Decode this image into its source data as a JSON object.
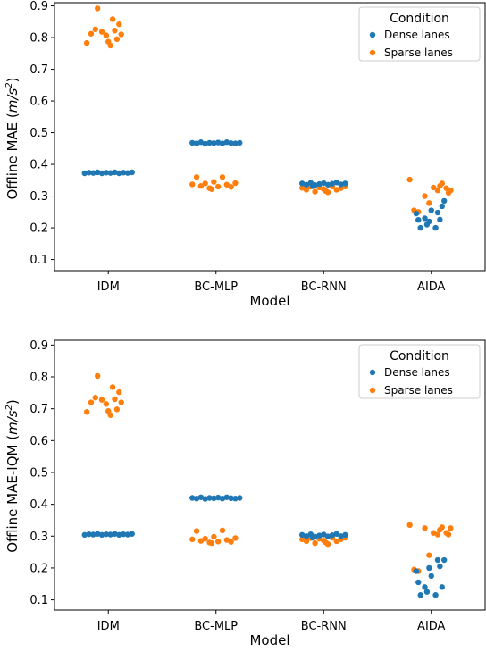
{
  "chart_data": [
    {
      "type": "scatter",
      "subtype": "strip",
      "title": "",
      "xlabel": "Model",
      "ylabel": "Offline MAE (m/s²)",
      "ylabel_parts": {
        "main": "Offline MAE (",
        "unit_base": "m/s",
        "unit_sup": "2",
        "close": ")"
      },
      "categories": [
        "IDM",
        "BC-MLP",
        "BC-RNN",
        "AIDA"
      ],
      "ylim": [
        0.065,
        0.91
      ],
      "yticks": [
        "0.1",
        "0.2",
        "0.3",
        "0.4",
        "0.5",
        "0.6",
        "0.7",
        "0.8",
        "0.9"
      ],
      "grid": false,
      "legend": {
        "title": "Condition",
        "position": "top-right"
      },
      "series": [
        {
          "name": "Dense lanes",
          "color": "#1f77b4",
          "points": [
            [
              [
                -0.22,
                0.372
              ],
              [
                -0.18,
                0.374
              ],
              [
                -0.14,
                0.373
              ],
              [
                -0.1,
                0.375
              ],
              [
                -0.06,
                0.372
              ],
              [
                -0.02,
                0.374
              ],
              [
                0.02,
                0.373
              ],
              [
                0.06,
                0.375
              ],
              [
                0.1,
                0.372
              ],
              [
                0.14,
                0.374
              ],
              [
                0.18,
                0.373
              ],
              [
                0.22,
                0.375
              ]
            ],
            [
              [
                -0.22,
                0.468
              ],
              [
                -0.18,
                0.466
              ],
              [
                -0.14,
                0.47
              ],
              [
                -0.1,
                0.465
              ],
              [
                -0.06,
                0.468
              ],
              [
                -0.02,
                0.467
              ],
              [
                0.02,
                0.469
              ],
              [
                0.06,
                0.466
              ],
              [
                0.1,
                0.47
              ],
              [
                0.14,
                0.467
              ],
              [
                0.18,
                0.466
              ],
              [
                0.22,
                0.468
              ]
            ],
            [
              [
                -0.2,
                0.34
              ],
              [
                -0.16,
                0.336
              ],
              [
                -0.12,
                0.342
              ],
              [
                -0.08,
                0.335
              ],
              [
                -0.04,
                0.338
              ],
              [
                0.0,
                0.341
              ],
              [
                0.04,
                0.336
              ],
              [
                0.08,
                0.339
              ],
              [
                0.12,
                0.343
              ],
              [
                0.16,
                0.337
              ],
              [
                0.2,
                0.34
              ],
              [
                -0.1,
                0.331
              ]
            ],
            [
              [
                -0.14,
                0.245
              ],
              [
                -0.12,
                0.225
              ],
              [
                -0.1,
                0.2
              ],
              [
                -0.06,
                0.23
              ],
              [
                -0.02,
                0.22
              ],
              [
                0.0,
                0.255
              ],
              [
                0.04,
                0.2
              ],
              [
                0.06,
                0.248
              ],
              [
                0.1,
                0.268
              ],
              [
                0.12,
                0.285
              ],
              [
                0.08,
                0.226
              ],
              [
                -0.04,
                0.21
              ]
            ]
          ]
        },
        {
          "name": "Sparse lanes",
          "color": "#ff7f0e",
          "points": [
            [
              [
                -0.2,
                0.783
              ],
              [
                -0.16,
                0.812
              ],
              [
                -0.12,
                0.826
              ],
              [
                -0.1,
                0.892
              ],
              [
                -0.06,
                0.818
              ],
              [
                -0.02,
                0.807
              ],
              [
                0.02,
                0.775
              ],
              [
                0.04,
                0.858
              ],
              [
                0.06,
                0.822
              ],
              [
                0.08,
                0.795
              ],
              [
                0.1,
                0.842
              ],
              [
                0.12,
                0.81
              ],
              [
                0.0,
                0.787
              ]
            ],
            [
              [
                -0.22,
                0.337
              ],
              [
                -0.18,
                0.36
              ],
              [
                -0.14,
                0.332
              ],
              [
                -0.1,
                0.34
              ],
              [
                -0.06,
                0.325
              ],
              [
                -0.02,
                0.345
              ],
              [
                0.02,
                0.33
              ],
              [
                0.06,
                0.36
              ],
              [
                0.1,
                0.336
              ],
              [
                0.14,
                0.329
              ],
              [
                0.18,
                0.341
              ],
              [
                -0.04,
                0.322
              ]
            ],
            [
              [
                -0.2,
                0.326
              ],
              [
                -0.16,
                0.32
              ],
              [
                -0.12,
                0.33
              ],
              [
                -0.08,
                0.314
              ],
              [
                -0.04,
                0.327
              ],
              [
                0.0,
                0.322
              ],
              [
                0.04,
                0.312
              ],
              [
                0.08,
                0.33
              ],
              [
                0.12,
                0.32
              ],
              [
                0.16,
                0.325
              ],
              [
                0.2,
                0.33
              ],
              [
                0.02,
                0.316
              ]
            ],
            [
              [
                -0.2,
                0.352
              ],
              [
                -0.16,
                0.255
              ],
              [
                -0.12,
                0.25
              ],
              [
                -0.06,
                0.3
              ],
              [
                -0.02,
                0.278
              ],
              [
                0.02,
                0.327
              ],
              [
                0.06,
                0.318
              ],
              [
                0.1,
                0.34
              ],
              [
                0.14,
                0.325
              ],
              [
                0.16,
                0.31
              ],
              [
                0.18,
                0.318
              ],
              [
                0.08,
                0.332
              ]
            ]
          ]
        }
      ]
    },
    {
      "type": "scatter",
      "subtype": "strip",
      "title": "",
      "xlabel": "Model",
      "ylabel": "Offline MAE-IQM (m/s²)",
      "ylabel_parts": {
        "main": "Offline MAE-IQM (",
        "unit_base": "m/s",
        "unit_sup": "2",
        "close": ")"
      },
      "categories": [
        "IDM",
        "BC-MLP",
        "BC-RNN",
        "AIDA"
      ],
      "ylim": [
        0.068,
        0.915
      ],
      "yticks": [
        "0.1",
        "0.2",
        "0.3",
        "0.4",
        "0.5",
        "0.6",
        "0.7",
        "0.8",
        "0.9"
      ],
      "grid": false,
      "legend": {
        "title": "Condition",
        "position": "top-right"
      },
      "series": [
        {
          "name": "Dense lanes",
          "color": "#1f77b4",
          "points": [
            [
              [
                -0.22,
                0.304
              ],
              [
                -0.18,
                0.306
              ],
              [
                -0.14,
                0.305
              ],
              [
                -0.1,
                0.307
              ],
              [
                -0.06,
                0.304
              ],
              [
                -0.02,
                0.306
              ],
              [
                0.02,
                0.305
              ],
              [
                0.06,
                0.307
              ],
              [
                0.1,
                0.304
              ],
              [
                0.14,
                0.306
              ],
              [
                0.18,
                0.305
              ],
              [
                0.22,
                0.307
              ]
            ],
            [
              [
                -0.22,
                0.42
              ],
              [
                -0.18,
                0.418
              ],
              [
                -0.14,
                0.422
              ],
              [
                -0.1,
                0.417
              ],
              [
                -0.06,
                0.42
              ],
              [
                -0.02,
                0.419
              ],
              [
                0.02,
                0.421
              ],
              [
                0.06,
                0.418
              ],
              [
                0.1,
                0.422
              ],
              [
                0.14,
                0.419
              ],
              [
                0.18,
                0.418
              ],
              [
                0.22,
                0.42
              ]
            ],
            [
              [
                -0.2,
                0.304
              ],
              [
                -0.16,
                0.3
              ],
              [
                -0.12,
                0.306
              ],
              [
                -0.08,
                0.298
              ],
              [
                -0.04,
                0.302
              ],
              [
                0.0,
                0.305
              ],
              [
                0.04,
                0.299
              ],
              [
                0.08,
                0.303
              ],
              [
                0.12,
                0.307
              ],
              [
                0.16,
                0.3
              ],
              [
                0.2,
                0.304
              ],
              [
                -0.1,
                0.295
              ]
            ],
            [
              [
                -0.14,
                0.19
              ],
              [
                -0.12,
                0.155
              ],
              [
                -0.1,
                0.115
              ],
              [
                -0.06,
                0.14
              ],
              [
                -0.02,
                0.2
              ],
              [
                0.0,
                0.175
              ],
              [
                0.04,
                0.115
              ],
              [
                0.06,
                0.225
              ],
              [
                0.08,
                0.205
              ],
              [
                0.1,
                0.14
              ],
              [
                0.12,
                0.225
              ],
              [
                -0.04,
                0.125
              ]
            ]
          ]
        },
        {
          "name": "Sparse lanes",
          "color": "#ff7f0e",
          "points": [
            [
              [
                -0.2,
                0.69
              ],
              [
                -0.16,
                0.72
              ],
              [
                -0.12,
                0.735
              ],
              [
                -0.1,
                0.803
              ],
              [
                -0.06,
                0.728
              ],
              [
                -0.02,
                0.715
              ],
              [
                0.02,
                0.68
              ],
              [
                0.04,
                0.768
              ],
              [
                0.06,
                0.73
              ],
              [
                0.08,
                0.698
              ],
              [
                0.1,
                0.752
              ],
              [
                0.12,
                0.72
              ],
              [
                0.0,
                0.693
              ]
            ],
            [
              [
                -0.22,
                0.29
              ],
              [
                -0.18,
                0.316
              ],
              [
                -0.14,
                0.285
              ],
              [
                -0.1,
                0.292
              ],
              [
                -0.06,
                0.28
              ],
              [
                -0.02,
                0.298
              ],
              [
                0.02,
                0.283
              ],
              [
                0.06,
                0.318
              ],
              [
                0.1,
                0.288
              ],
              [
                0.14,
                0.282
              ],
              [
                0.18,
                0.294
              ],
              [
                -0.04,
                0.278
              ]
            ],
            [
              [
                -0.2,
                0.29
              ],
              [
                -0.16,
                0.284
              ],
              [
                -0.12,
                0.294
              ],
              [
                -0.08,
                0.278
              ],
              [
                -0.04,
                0.292
              ],
              [
                0.0,
                0.286
              ],
              [
                0.04,
                0.275
              ],
              [
                0.08,
                0.295
              ],
              [
                0.12,
                0.284
              ],
              [
                0.16,
                0.29
              ],
              [
                0.2,
                0.295
              ],
              [
                0.02,
                0.28
              ]
            ],
            [
              [
                -0.2,
                0.335
              ],
              [
                -0.16,
                0.195
              ],
              [
                -0.12,
                0.19
              ],
              [
                -0.06,
                0.325
              ],
              [
                -0.02,
                0.24
              ],
              [
                0.02,
                0.31
              ],
              [
                0.06,
                0.305
              ],
              [
                0.1,
                0.328
              ],
              [
                0.14,
                0.31
              ],
              [
                0.16,
                0.305
              ],
              [
                0.18,
                0.325
              ],
              [
                0.08,
                0.32
              ]
            ]
          ]
        }
      ]
    }
  ]
}
